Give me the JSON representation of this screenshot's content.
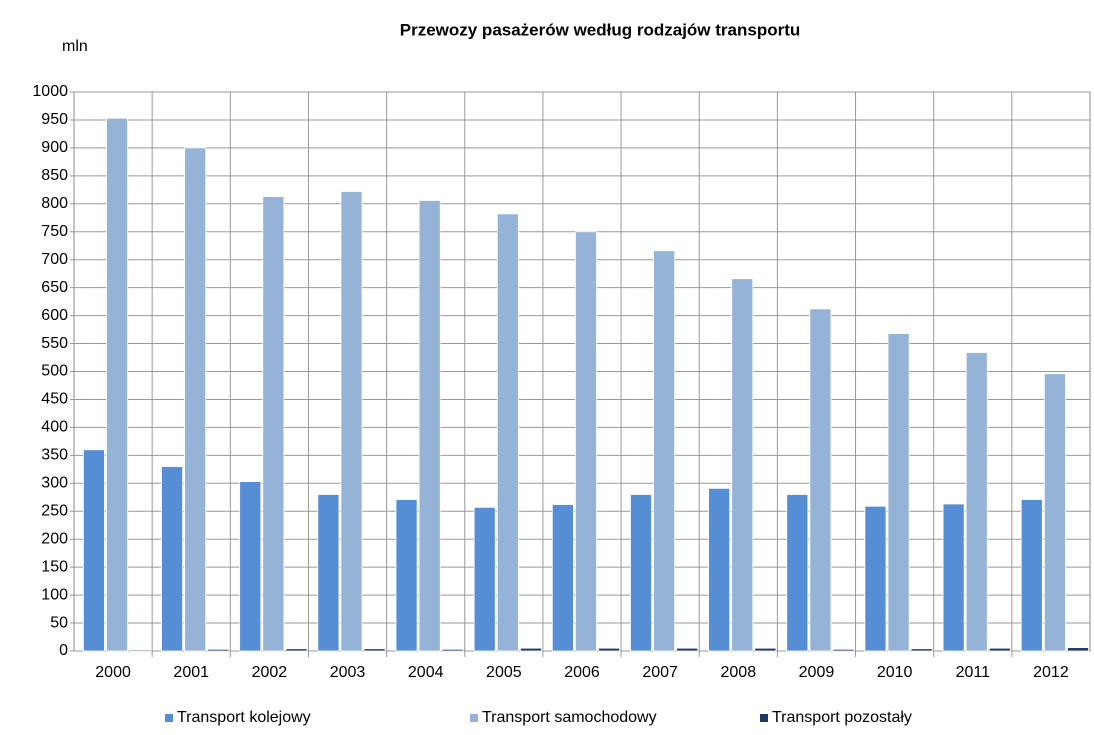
{
  "chart_data": {
    "type": "bar",
    "title": "Przewozy pasażerów według rodzajów transportu",
    "y_label": "mln",
    "categories": [
      "2000",
      "2001",
      "2002",
      "2003",
      "2004",
      "2005",
      "2006",
      "2007",
      "2008",
      "2009",
      "2010",
      "2011",
      "2012"
    ],
    "series": [
      {
        "name": "Transport kolejowy",
        "color": "#558ed5",
        "values": [
          360,
          330,
          303,
          280,
          271,
          257,
          262,
          280,
          291,
          280,
          259,
          263,
          271
        ]
      },
      {
        "name": "Transport samochodowy",
        "color": "#95b3d7",
        "values": [
          953,
          900,
          813,
          822,
          806,
          782,
          750,
          716,
          666,
          612,
          568,
          534,
          496
        ]
      },
      {
        "name": "Transport pozostały",
        "color": "#1f3864",
        "values": [
          2,
          3,
          4,
          4,
          3,
          5,
          5,
          5,
          5,
          3,
          4,
          5,
          6
        ]
      }
    ],
    "ylim": [
      0,
      1000
    ],
    "yticks": [
      0,
      50,
      100,
      150,
      200,
      250,
      300,
      350,
      400,
      450,
      500,
      550,
      600,
      650,
      700,
      750,
      800,
      850,
      900,
      950,
      1000
    ],
    "grid": true,
    "legend": "bottom"
  }
}
